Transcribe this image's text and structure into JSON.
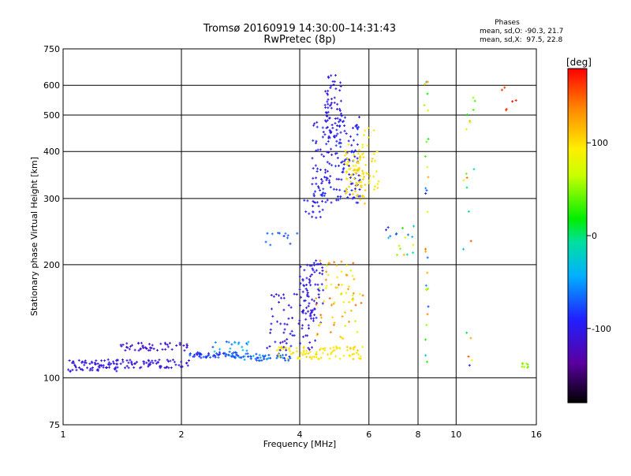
{
  "chart_data": {
    "type": "scatter",
    "title": "Tromsø 20160919 14:30:00–14:31:43",
    "subtitle": "RwPretec (8p)",
    "xlabel": "Frequency [MHz]",
    "ylabel": "Stationary phase Virtual Height [km]",
    "x_scale": "log",
    "y_scale": "log",
    "xlim": [
      1,
      16
    ],
    "ylim": [
      75,
      750
    ],
    "grid": true,
    "x_ticks": [
      {
        "value": 1,
        "label": "1"
      },
      {
        "value": 2,
        "label": "2"
      },
      {
        "value": 4,
        "label": "4"
      },
      {
        "value": 6,
        "label": "6"
      },
      {
        "value": 8,
        "label": "8"
      },
      {
        "value": 10,
        "label": "10"
      },
      {
        "value": 16,
        "label": "16"
      }
    ],
    "y_ticks": [
      {
        "value": 75,
        "label": "75"
      },
      {
        "value": 100,
        "label": "100"
      },
      {
        "value": 200,
        "label": "200"
      },
      {
        "value": 300,
        "label": "300"
      },
      {
        "value": 400,
        "label": "400"
      },
      {
        "value": 500,
        "label": "500"
      },
      {
        "value": 600,
        "label": "600"
      },
      {
        "value": 750,
        "label": "750"
      }
    ],
    "stats": {
      "title": "Phases",
      "line1": "mean, sd,O: -90.3, 21.7",
      "line2": "mean, sd,X:  97.5, 22.8"
    },
    "colorbar": {
      "label": "[deg]",
      "range": [
        -180,
        180
      ],
      "ticks": [
        {
          "value": 100,
          "label": "100"
        },
        {
          "value": 0,
          "label": "0"
        },
        {
          "value": -100,
          "label": "-100"
        }
      ]
    },
    "point_groups": [
      {
        "x": [
          1.03,
          1.4
        ],
        "y": [
          104,
          112
        ],
        "phase": [
          -110,
          -100
        ],
        "n": 70
      },
      {
        "x": [
          1.4,
          2.1
        ],
        "y": [
          106,
          112
        ],
        "phase": [
          -115,
          -100
        ],
        "n": 60
      },
      {
        "x": [
          1.4,
          2.1
        ],
        "y": [
          118,
          124
        ],
        "phase": [
          -120,
          -105
        ],
        "n": 50
      },
      {
        "x": [
          2.1,
          2.8
        ],
        "y": [
          113,
          117
        ],
        "phase": [
          -100,
          -60
        ],
        "n": 60
      },
      {
        "x": [
          2.4,
          3.0
        ],
        "y": [
          116,
          126
        ],
        "phase": [
          -80,
          -20
        ],
        "n": 20
      },
      {
        "x": [
          2.8,
          3.8
        ],
        "y": [
          111,
          116
        ],
        "phase": [
          -90,
          -40
        ],
        "n": 50
      },
      {
        "x": [
          3.5,
          5.8
        ],
        "y": [
          112,
          121
        ],
        "phase": [
          80,
          110
        ],
        "n": 90
      },
      {
        "x": [
          3.3,
          4.4
        ],
        "y": [
          118,
          170
        ],
        "phase": [
          -120,
          -90
        ],
        "n": 70
      },
      {
        "x": [
          4.0,
          4.6
        ],
        "y": [
          140,
          205
        ],
        "phase": [
          -110,
          -90
        ],
        "n": 70
      },
      {
        "x": [
          4.4,
          5.8
        ],
        "y": [
          125,
          205
        ],
        "phase": [
          60,
          150
        ],
        "n": 70
      },
      {
        "x": [
          4.3,
          5.7
        ],
        "y": [
          290,
          500
        ],
        "phase": [
          -110,
          -80
        ],
        "n": 180
      },
      {
        "x": [
          4.6,
          5.1
        ],
        "y": [
          430,
          640
        ],
        "phase": [
          -110,
          -90
        ],
        "n": 60
      },
      {
        "x": [
          5.2,
          5.9
        ],
        "y": [
          290,
          420
        ],
        "phase": [
          90,
          110
        ],
        "n": 80
      },
      {
        "x": [
          4.1,
          4.6
        ],
        "y": [
          265,
          300
        ],
        "phase": [
          -110,
          -95
        ],
        "n": 15
      },
      {
        "x": [
          3.2,
          4.0
        ],
        "y": [
          225,
          245
        ],
        "phase": [
          -100,
          -60
        ],
        "n": 12
      },
      {
        "x": [
          5.8,
          6.4
        ],
        "y": [
          310,
          470
        ],
        "phase": [
          90,
          110
        ],
        "n": 25
      },
      {
        "x": [
          6.6,
          7.8
        ],
        "y": [
          210,
          260
        ],
        "phase": [
          -100,
          120
        ],
        "n": 18
      },
      {
        "x": [
          8.3,
          8.5
        ],
        "y": [
          105,
          640
        ],
        "phase": [
          -110,
          160
        ],
        "n": 30
      },
      {
        "x": [
          10.4,
          11.2
        ],
        "y": [
          100,
          600
        ],
        "phase": [
          -100,
          160
        ],
        "n": 20
      },
      {
        "x": [
          13.0,
          14.5
        ],
        "y": [
          505,
          605
        ],
        "phase": [
          160,
          180
        ],
        "n": 6
      },
      {
        "x": [
          14.7,
          15.3
        ],
        "y": [
          106,
          110
        ],
        "phase": [
          40,
          60
        ],
        "n": 10
      }
    ]
  }
}
